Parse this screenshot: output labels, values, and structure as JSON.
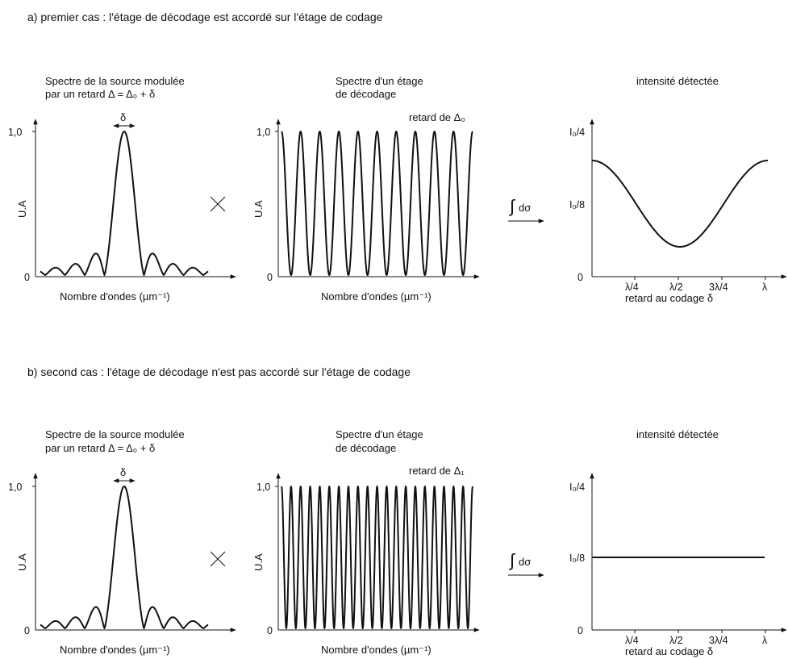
{
  "case_a": {
    "heading": "a) premier cas : l'étage de décodage est accordé sur l'étage de codage",
    "source_spectrum": {
      "title_line1": "Spectre de la source modulée",
      "title_line2": "par un retard Δ = Δ₀ + δ",
      "ylabel": "U.A",
      "xlabel": "Nombre d'ondes (µm⁻¹)",
      "ytick_top": "1,0",
      "ytick_zero": "0",
      "delta_mark": "δ"
    },
    "operator": "×",
    "decoding_spectrum": {
      "title_line1": "Spectre d'un étage",
      "title_line2": "de décodage",
      "retard_label": "retard de Δ₀",
      "ylabel": "U.A",
      "xlabel": "Nombre d'ondes (µm⁻¹)",
      "ytick_top": "1,0",
      "ytick_zero": "0",
      "fringe_count": 11
    },
    "integral_label": "dσ",
    "intensity": {
      "title": "intensité détectée",
      "xlabel": "retard au codage δ",
      "yticks": [
        "I₀/4",
        "I₀/8",
        "0"
      ],
      "xticks": [
        "λ/4",
        "λ/2",
        "3λ/4",
        "λ"
      ],
      "curve": "cosine"
    }
  },
  "case_b": {
    "heading": "b) second cas :  l'étage de décodage n'est pas accordé sur l'étage de codage",
    "source_spectrum": {
      "title_line1": "Spectre de la source modulée",
      "title_line2": "par un retard Δ = Δ₀ + δ",
      "ylabel": "U.A",
      "xlabel": "Nombre d'ondes (µm⁻¹)",
      "ytick_top": "1,0",
      "ytick_zero": "0",
      "delta_mark": "δ"
    },
    "operator": "×",
    "decoding_spectrum": {
      "title_line1": "Spectre d'un étage",
      "title_line2": "de décodage",
      "retard_label": "retard de Δ₁",
      "ylabel": "U.A",
      "xlabel": "Nombre d'ondes (µm⁻¹)",
      "ytick_top": "1,0",
      "ytick_zero": "0",
      "fringe_count": 21
    },
    "integral_label": "dσ",
    "intensity": {
      "title": "intensité détectée",
      "xlabel": "retard au codage δ",
      "yticks": [
        "I₀/4",
        "I₀/8",
        "0"
      ],
      "xticks": [
        "λ/4",
        "λ/2",
        "3λ/4",
        "λ"
      ],
      "curve": "flat"
    }
  }
}
